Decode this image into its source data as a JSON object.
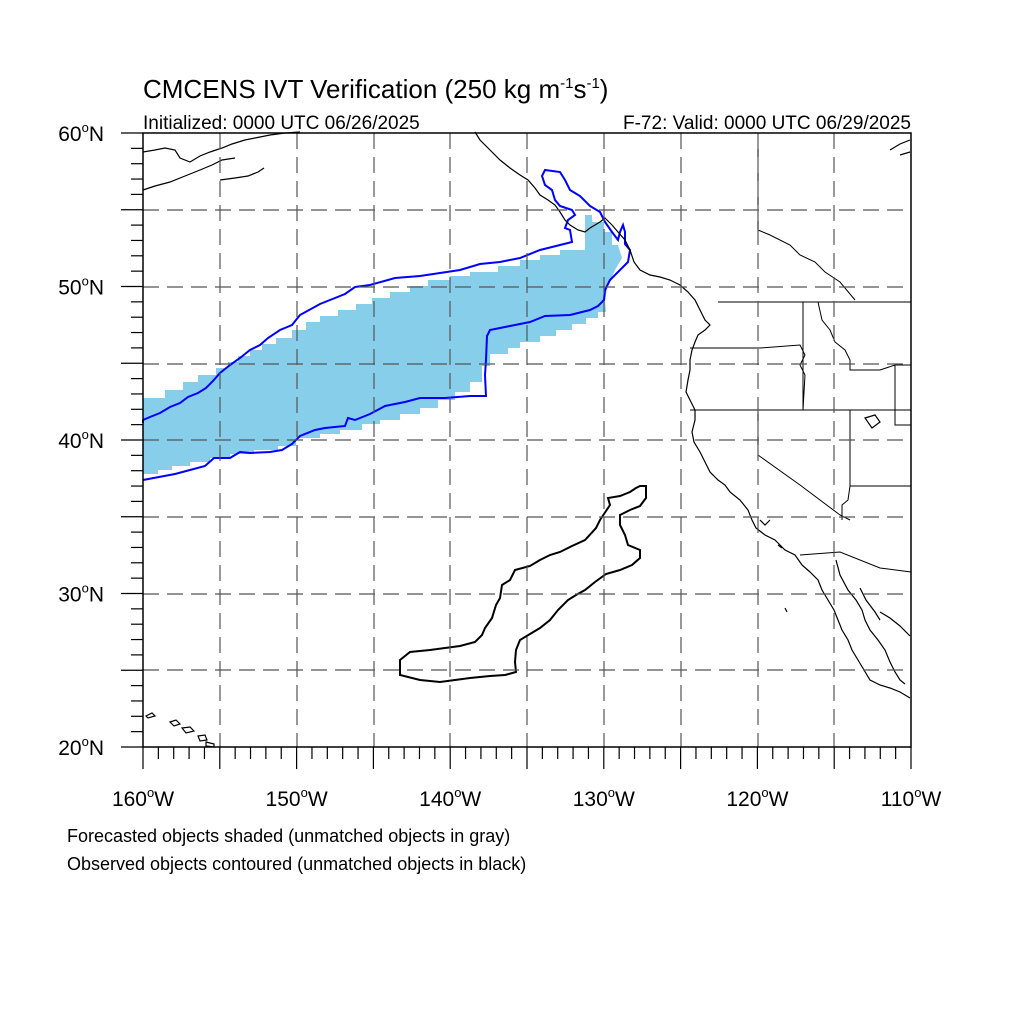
{
  "title": {
    "main": "CMCENS IVT Verification (250 kg m",
    "exp1": "-1",
    "unit_mid": "s",
    "exp2": "-1",
    "close": ")"
  },
  "subtitle_left": "Initialized: 0000 UTC 06/26/2025",
  "subtitle_right": "F-72: Valid: 0000 UTC 06/29/2025",
  "lat_labels": [
    {
      "value": 60,
      "deg": "60",
      "hemi": "N"
    },
    {
      "value": 50,
      "deg": "50",
      "hemi": "N"
    },
    {
      "value": 40,
      "deg": "40",
      "hemi": "N"
    },
    {
      "value": 30,
      "deg": "30",
      "hemi": "N"
    },
    {
      "value": 20,
      "deg": "20",
      "hemi": "N"
    }
  ],
  "lon_labels": [
    {
      "value": -160,
      "deg": "160",
      "hemi": "W"
    },
    {
      "value": -150,
      "deg": "150",
      "hemi": "W"
    },
    {
      "value": -140,
      "deg": "140",
      "hemi": "W"
    },
    {
      "value": -130,
      "deg": "130",
      "hemi": "W"
    },
    {
      "value": -120,
      "deg": "120",
      "hemi": "W"
    },
    {
      "value": -110,
      "deg": "110",
      "hemi": "W"
    }
  ],
  "footnotes": {
    "line1": "Forecasted objects shaded (unmatched objects in gray)",
    "line2": "Observed objects contoured (unmatched objects in black)"
  },
  "map_extent": {
    "lon": [
      -160,
      -110
    ],
    "lat": [
      20,
      60
    ]
  },
  "colors": {
    "forecast_fill": "#87ceeb",
    "matched_contour": "#0000ff",
    "unmatched_contour": "#000000",
    "coastline": "#000000",
    "grid": "#555555"
  }
}
